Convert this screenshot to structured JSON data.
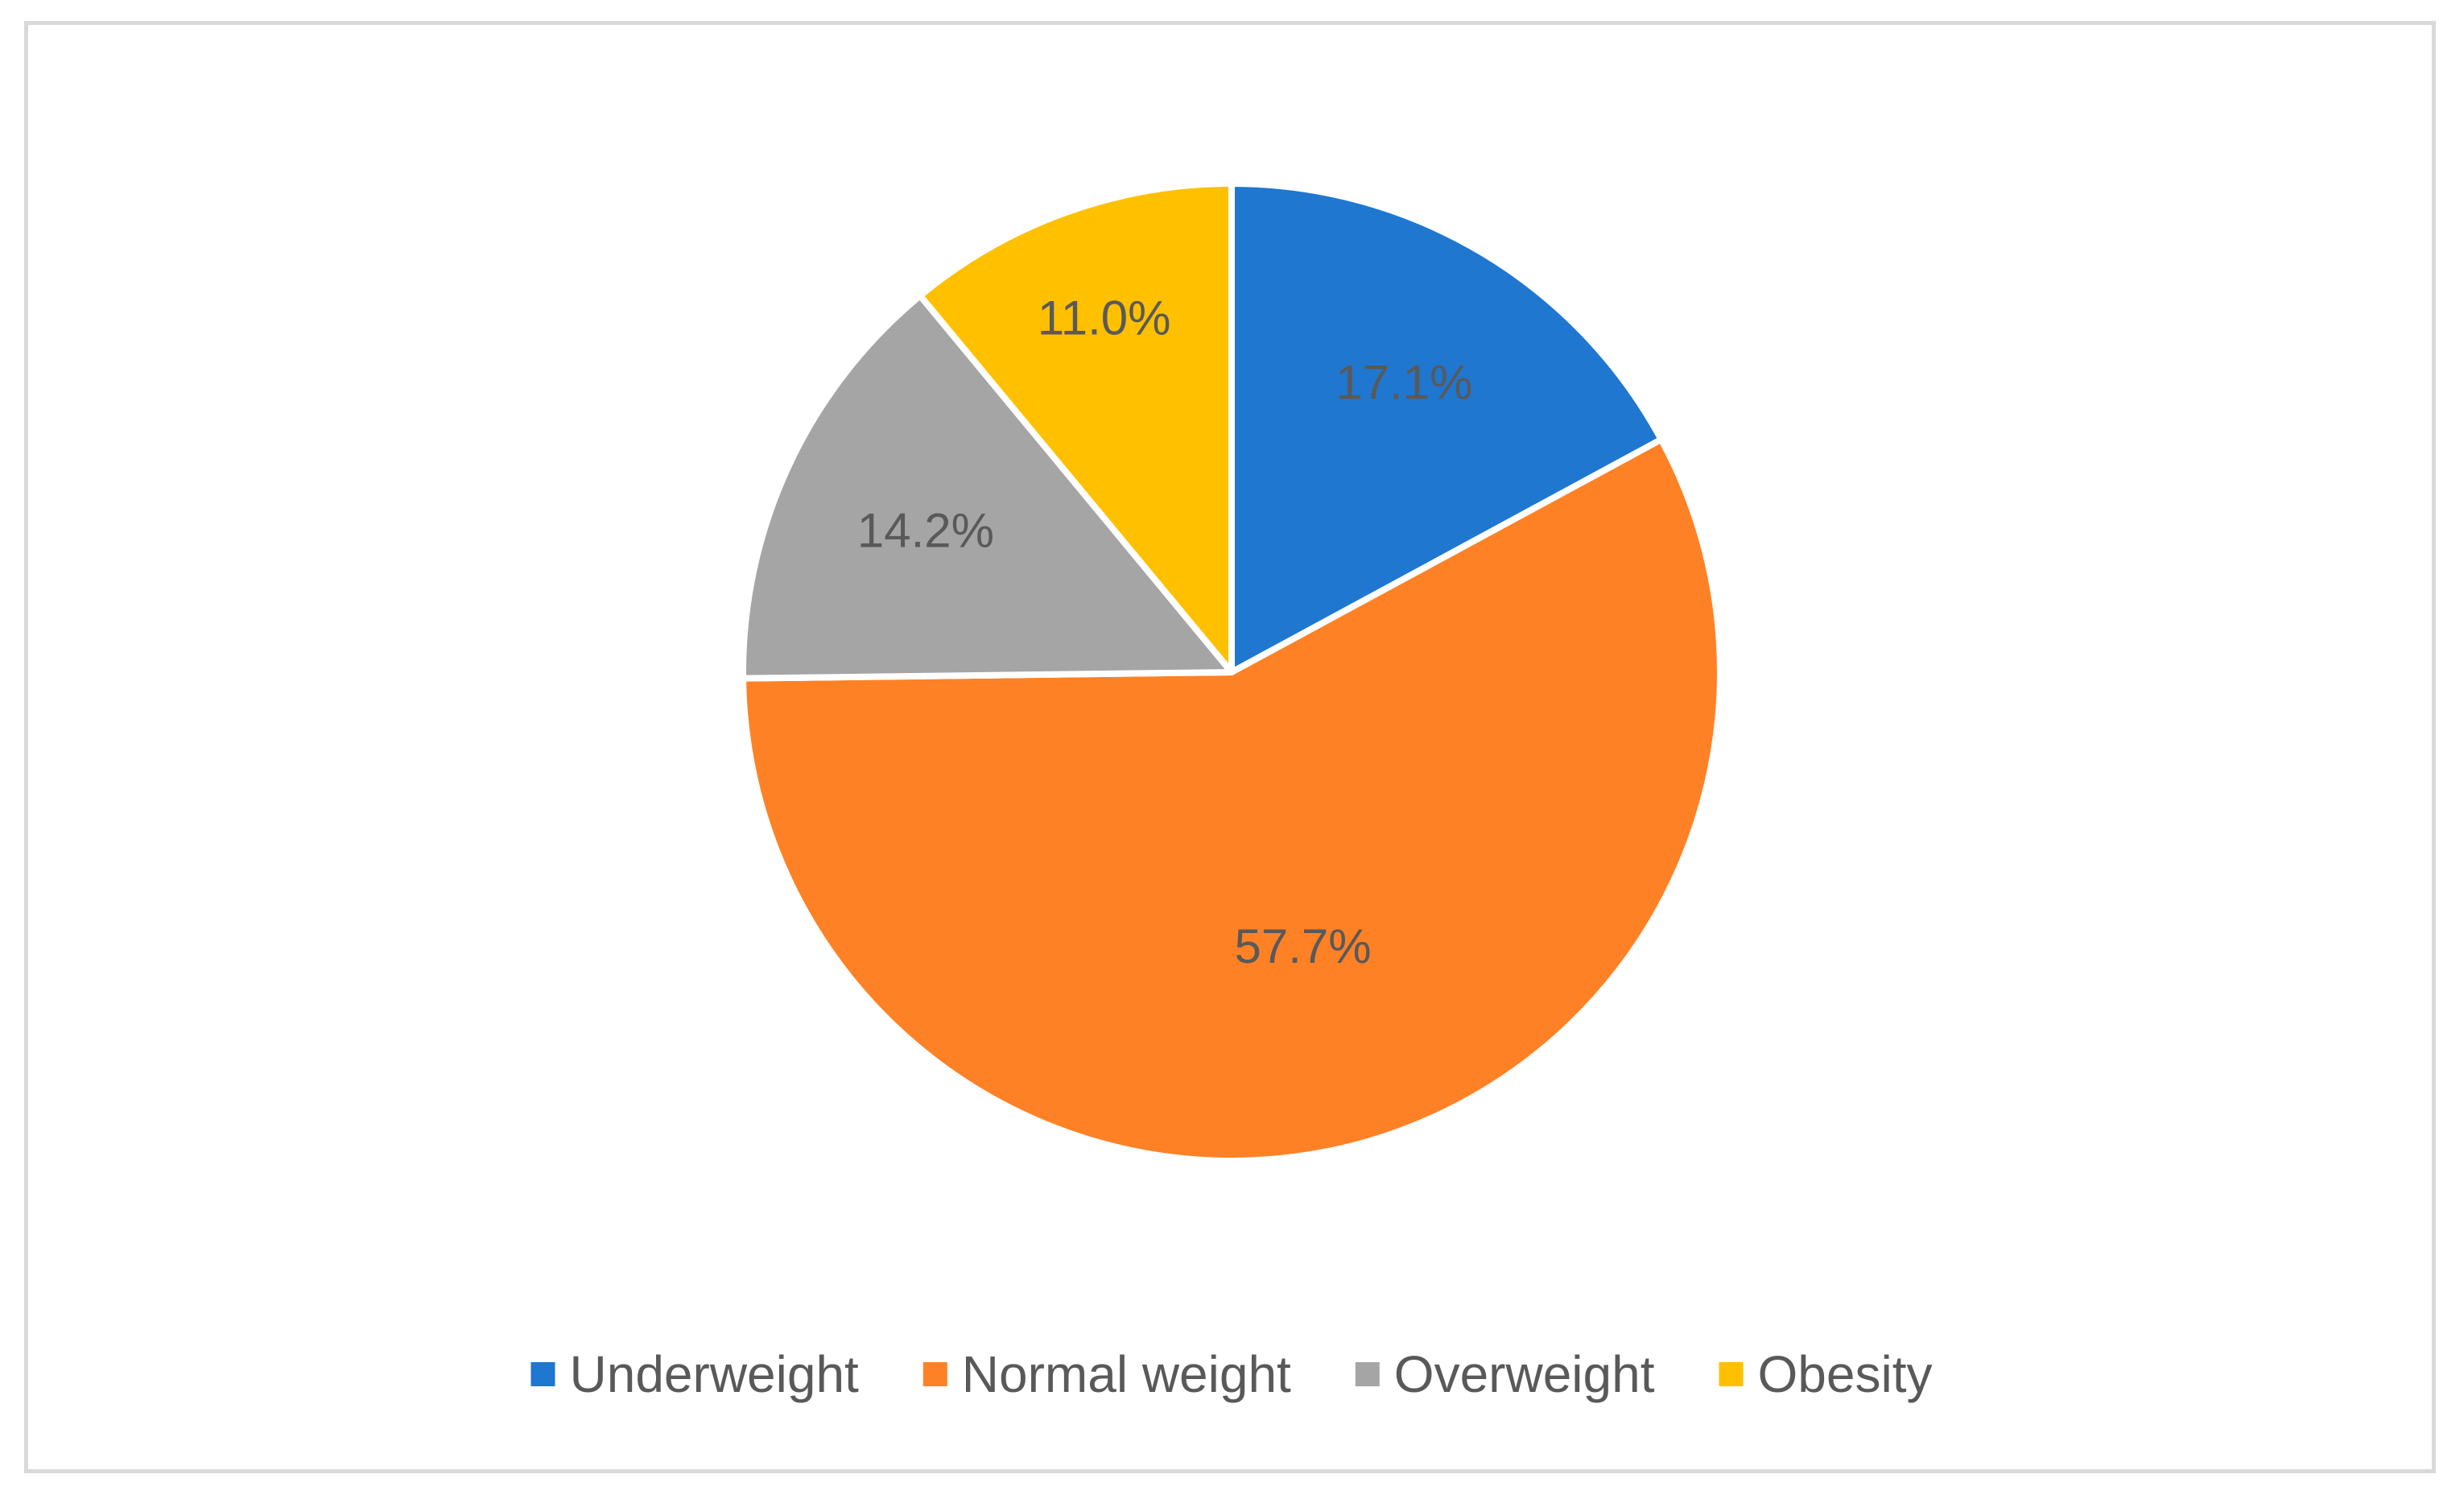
{
  "chart_data": {
    "type": "pie",
    "title": "",
    "categories": [
      "Underweight",
      "Normal weight",
      "Overweight",
      "Obesity"
    ],
    "values": [
      17.1,
      57.7,
      14.2,
      11.0
    ],
    "labels": [
      "17.1%",
      "57.7%",
      "14.2%",
      "11.0%"
    ],
    "colors": [
      "#1f77d0",
      "#ff8126",
      "#a5a5a5",
      "#ffc000"
    ],
    "start_angle_deg": 0,
    "direction": "clockwise",
    "legend_position": "bottom"
  }
}
